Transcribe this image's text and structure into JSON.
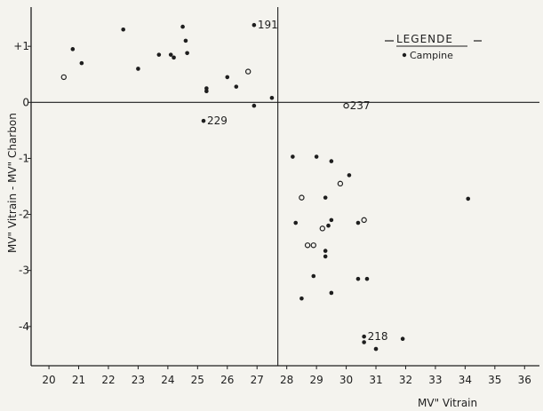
{
  "chart_data": {
    "type": "scatter",
    "title": "",
    "xlabel": "MV\" Vitrain",
    "ylabel": "MV\" Vitrain - MV\" Charbon",
    "xlim": [
      19.4,
      36.5
    ],
    "ylim": [
      -4.7,
      1.7
    ],
    "x_ticks": [
      20,
      21,
      22,
      23,
      24,
      25,
      26,
      27,
      28,
      29,
      30,
      31,
      32,
      33,
      34,
      35,
      36
    ],
    "y_ticks": [
      1,
      0,
      -1,
      -2,
      -3,
      -4
    ],
    "y_tick_labels": [
      "+1",
      "0",
      "-1",
      "-2",
      "-3",
      "-4"
    ],
    "reference_lines": {
      "x": 27.7,
      "y": 0
    },
    "legend": {
      "title": "LEGENDE",
      "items": [
        "Campine"
      ],
      "placement": "top-right"
    },
    "grid": false,
    "points": [
      {
        "x": 20.5,
        "y": 0.45,
        "style": "open"
      },
      {
        "x": 20.8,
        "y": 0.95,
        "style": "filled"
      },
      {
        "x": 21.1,
        "y": 0.7,
        "style": "filled"
      },
      {
        "x": 22.5,
        "y": 1.3,
        "style": "filled"
      },
      {
        "x": 23.0,
        "y": 0.6,
        "style": "filled"
      },
      {
        "x": 23.7,
        "y": 0.85,
        "style": "filled"
      },
      {
        "x": 24.1,
        "y": 0.85,
        "style": "filled"
      },
      {
        "x": 24.2,
        "y": 0.8,
        "style": "filled"
      },
      {
        "x": 24.5,
        "y": 1.35,
        "style": "filled"
      },
      {
        "x": 24.6,
        "y": 1.1,
        "style": "filled"
      },
      {
        "x": 24.65,
        "y": 0.88,
        "style": "filled"
      },
      {
        "x": 25.3,
        "y": 0.25,
        "style": "filled"
      },
      {
        "x": 25.3,
        "y": 0.2,
        "style": "filled"
      },
      {
        "x": 25.2,
        "y": -0.33,
        "style": "filled",
        "label": "229"
      },
      {
        "x": 26.0,
        "y": 0.45,
        "style": "filled"
      },
      {
        "x": 26.3,
        "y": 0.28,
        "style": "filled"
      },
      {
        "x": 26.7,
        "y": 0.55,
        "style": "open"
      },
      {
        "x": 26.9,
        "y": -0.06,
        "style": "filled"
      },
      {
        "x": 26.9,
        "y": 1.38,
        "style": "filled",
        "label": "191"
      },
      {
        "x": 27.5,
        "y": 0.08,
        "style": "filled"
      },
      {
        "x": 30.0,
        "y": -0.06,
        "style": "open",
        "label": "237"
      },
      {
        "x": 28.2,
        "y": -0.97,
        "style": "filled"
      },
      {
        "x": 29.0,
        "y": -0.97,
        "style": "filled"
      },
      {
        "x": 29.5,
        "y": -1.05,
        "style": "filled"
      },
      {
        "x": 29.8,
        "y": -1.45,
        "style": "open"
      },
      {
        "x": 30.1,
        "y": -1.3,
        "style": "filled"
      },
      {
        "x": 28.5,
        "y": -1.7,
        "style": "open"
      },
      {
        "x": 29.3,
        "y": -1.7,
        "style": "filled"
      },
      {
        "x": 34.1,
        "y": -1.72,
        "style": "filled"
      },
      {
        "x": 28.3,
        "y": -2.15,
        "style": "filled"
      },
      {
        "x": 29.2,
        "y": -2.25,
        "style": "open"
      },
      {
        "x": 29.4,
        "y": -2.2,
        "style": "filled"
      },
      {
        "x": 29.5,
        "y": -2.1,
        "style": "filled"
      },
      {
        "x": 30.4,
        "y": -2.15,
        "style": "filled"
      },
      {
        "x": 30.6,
        "y": -2.1,
        "style": "open"
      },
      {
        "x": 28.7,
        "y": -2.55,
        "style": "open"
      },
      {
        "x": 28.9,
        "y": -2.55,
        "style": "open"
      },
      {
        "x": 29.3,
        "y": -2.65,
        "style": "filled"
      },
      {
        "x": 29.3,
        "y": -2.75,
        "style": "filled"
      },
      {
        "x": 28.9,
        "y": -3.1,
        "style": "filled"
      },
      {
        "x": 30.4,
        "y": -3.15,
        "style": "filled"
      },
      {
        "x": 30.7,
        "y": -3.15,
        "style": "filled"
      },
      {
        "x": 29.5,
        "y": -3.4,
        "style": "filled"
      },
      {
        "x": 28.5,
        "y": -3.5,
        "style": "filled"
      },
      {
        "x": 30.6,
        "y": -4.18,
        "style": "filled",
        "label": "218"
      },
      {
        "x": 30.6,
        "y": -4.28,
        "style": "filled"
      },
      {
        "x": 31.0,
        "y": -4.4,
        "style": "filled"
      },
      {
        "x": 31.9,
        "y": -4.22,
        "style": "filled"
      }
    ]
  }
}
